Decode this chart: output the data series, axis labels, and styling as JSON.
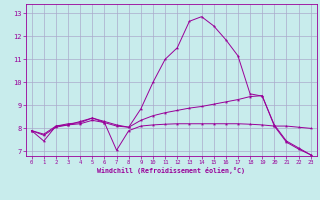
{
  "xlabel": "Windchill (Refroidissement éolien,°C)",
  "bg_color": "#c8ecec",
  "line_color": "#990099",
  "grid_color": "#aaaacc",
  "xlim": [
    -0.5,
    23.5
  ],
  "ylim": [
    6.8,
    13.4
  ],
  "xticks": [
    0,
    1,
    2,
    3,
    4,
    5,
    6,
    7,
    8,
    9,
    10,
    11,
    12,
    13,
    14,
    15,
    16,
    17,
    18,
    19,
    20,
    21,
    22,
    23
  ],
  "yticks": [
    7,
    8,
    9,
    10,
    11,
    12,
    13
  ],
  "line1_x": [
    0,
    1,
    2,
    3,
    4,
    5,
    6,
    7,
    8,
    9,
    10,
    11,
    12,
    13,
    14,
    15,
    16,
    17,
    18,
    19,
    20,
    21,
    22,
    23
  ],
  "line1_y": [
    7.9,
    7.45,
    8.1,
    8.2,
    8.25,
    8.45,
    8.3,
    8.15,
    8.05,
    8.85,
    10.0,
    11.0,
    11.5,
    12.65,
    12.85,
    12.45,
    11.85,
    11.15,
    9.5,
    9.4,
    8.15,
    7.45,
    7.15,
    6.85
  ],
  "line2_x": [
    0,
    1,
    2,
    3,
    4,
    5,
    6,
    7,
    8,
    9,
    10,
    11,
    12,
    13,
    14,
    15,
    16,
    17,
    18,
    19,
    20,
    21,
    22,
    23
  ],
  "line2_y": [
    7.9,
    7.7,
    8.05,
    8.15,
    8.3,
    8.45,
    8.25,
    7.05,
    7.9,
    8.1,
    8.15,
    8.18,
    8.2,
    8.2,
    8.2,
    8.2,
    8.2,
    8.2,
    8.18,
    8.15,
    8.1,
    8.1,
    8.05,
    8.0
  ],
  "line3_x": [
    0,
    1,
    2,
    3,
    4,
    5,
    6,
    7,
    8,
    9,
    10,
    11,
    12,
    13,
    14,
    15,
    16,
    17,
    18,
    19,
    20,
    21,
    22,
    23
  ],
  "line3_y": [
    7.9,
    7.75,
    8.1,
    8.15,
    8.2,
    8.35,
    8.25,
    8.1,
    8.05,
    8.35,
    8.55,
    8.68,
    8.78,
    8.88,
    8.95,
    9.05,
    9.15,
    9.25,
    9.38,
    9.42,
    8.1,
    7.4,
    7.1,
    6.85
  ]
}
